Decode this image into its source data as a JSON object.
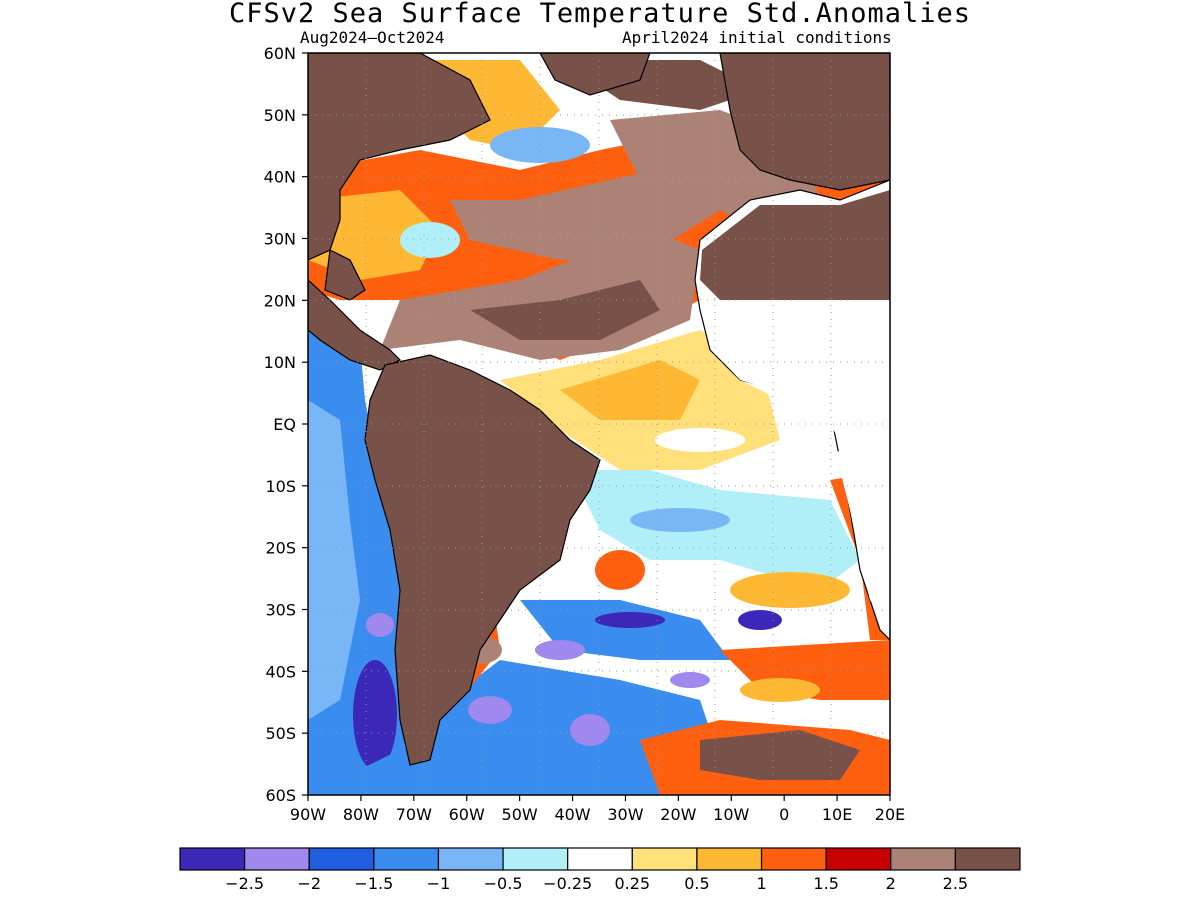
{
  "title": "CFSv2 Sea Surface Temperature Std.Anomalies",
  "period": "Aug2024–Oct2024",
  "init": "April2024 initial conditions",
  "lat_labels": [
    "60N",
    "50N",
    "40N",
    "30N",
    "20N",
    "10N",
    "EQ",
    "10S",
    "20S",
    "30S",
    "40S",
    "50S",
    "60S"
  ],
  "lon_labels": [
    "90W",
    "80W",
    "70W",
    "60W",
    "50W",
    "40W",
    "30W",
    "20W",
    "10W",
    "0",
    "10E",
    "20E"
  ],
  "colorbar": {
    "colors": [
      "#3b28b8",
      "#9f88ee",
      "#1f5fe0",
      "#3a8cef",
      "#78b6f5",
      "#b0eef8",
      "#ffffff",
      "#ffe07a",
      "#ffb833",
      "#ff6010",
      "#c80000",
      "#ad8276",
      "#785149"
    ],
    "labels": [
      "−2.5",
      "−2",
      "−1.5",
      "−1",
      "−0.5",
      "−0.25",
      "0.25",
      "0.5",
      "1",
      "1.5",
      "2",
      "2.5"
    ]
  }
}
